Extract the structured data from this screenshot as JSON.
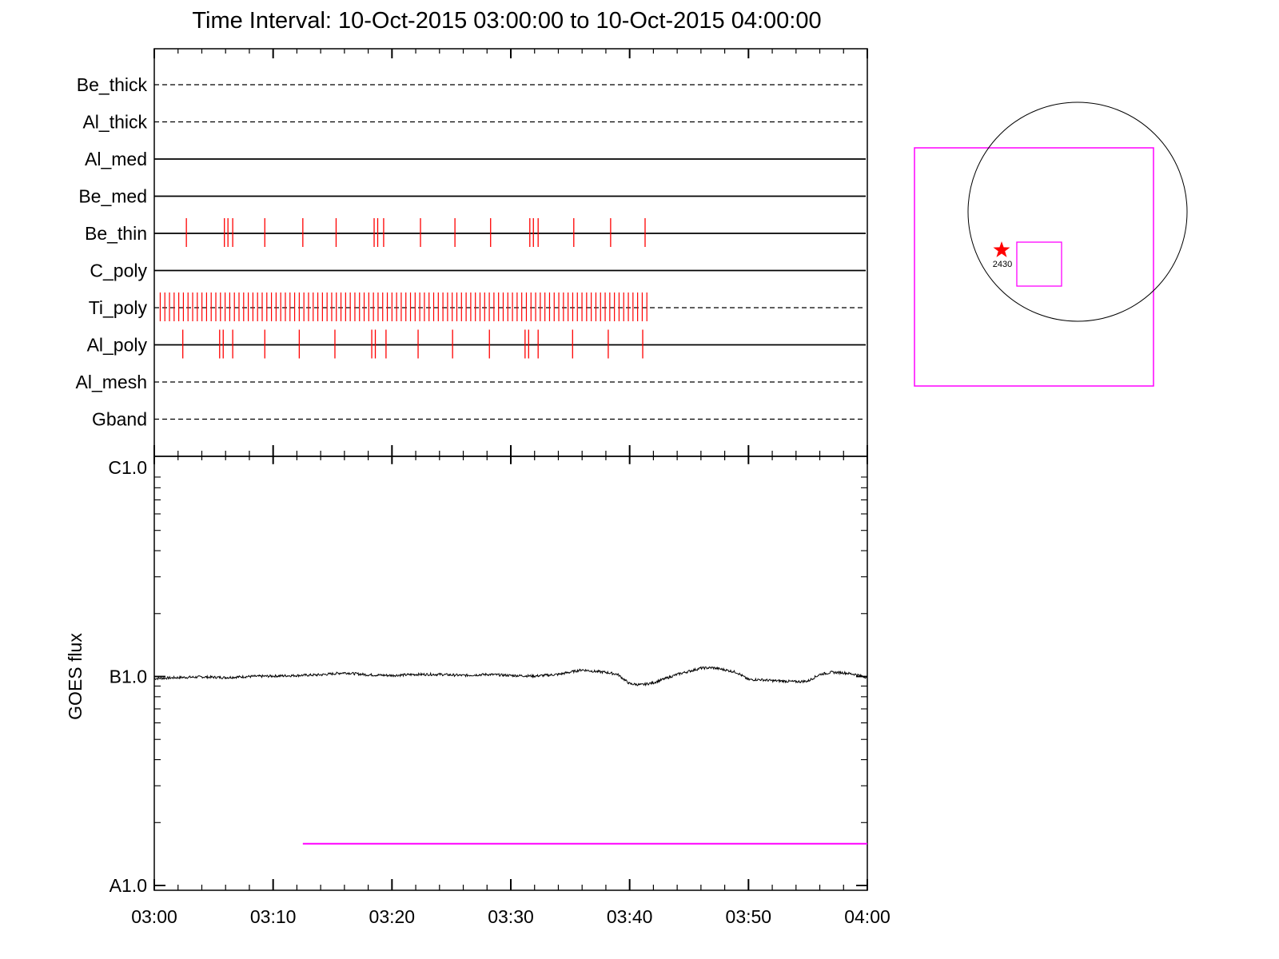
{
  "title": "Time Interval: 10-Oct-2015 03:00:00 to 10-Oct-2015 04:00:00",
  "colors": {
    "axis": "#000000",
    "marks": "#ff0000",
    "magenta": "#ff00ff",
    "curve": "#000000"
  },
  "chart_data": [
    {
      "type": "timeline",
      "x_range_minutes": [
        0,
        60
      ],
      "x_start": "03:00",
      "x_end": "04:00",
      "tick_labels": [
        "03:00",
        "03:10",
        "03:20",
        "03:30",
        "03:40",
        "03:50",
        "04:00"
      ],
      "channels": [
        {
          "name": "Be_thick",
          "line": "dashed",
          "events_min": []
        },
        {
          "name": "Al_thick",
          "line": "dashed",
          "events_min": []
        },
        {
          "name": "Al_med",
          "line": "solid",
          "events_min": []
        },
        {
          "name": "Be_med",
          "line": "solid",
          "events_min": []
        },
        {
          "name": "Be_thin",
          "line": "solid",
          "events_min": [
            2.7,
            5.9,
            6.2,
            6.6,
            9.3,
            12.5,
            15.3,
            18.5,
            18.8,
            19.3,
            22.4,
            25.3,
            28.3,
            31.6,
            31.9,
            32.3,
            35.3,
            38.4,
            41.3
          ]
        },
        {
          "name": "C_poly",
          "line": "solid",
          "events_min": []
        },
        {
          "name": "Ti_poly",
          "line": "dashed",
          "events_min": [],
          "dense_range_min": [
            0.5,
            41.7
          ],
          "dense_spacing_min": 0.39
        },
        {
          "name": "Al_poly",
          "line": "solid",
          "events_min": [
            2.4,
            5.5,
            5.8,
            6.6,
            9.3,
            12.2,
            15.2,
            18.3,
            18.6,
            19.5,
            22.2,
            25.1,
            28.2,
            31.2,
            31.5,
            32.3,
            35.2,
            38.2,
            41.1
          ]
        },
        {
          "name": "Al_mesh",
          "line": "dashed",
          "events_min": []
        },
        {
          "name": "Gband",
          "line": "dashed",
          "events_min": []
        }
      ]
    },
    {
      "type": "line",
      "ylabel": "GOES flux",
      "y_scale": "log",
      "y_tick_labels": [
        "C1.0",
        "B1.0",
        "A1.0"
      ],
      "ylim_decades": [
        -8,
        -6
      ],
      "x_tick_labels": [
        "03:00",
        "03:10",
        "03:20",
        "03:30",
        "03:40",
        "03:50",
        "04:00"
      ],
      "series": [
        {
          "x_min": [
            0,
            2,
            4,
            6,
            8,
            10,
            12,
            14,
            16,
            18,
            20,
            22,
            24,
            26,
            28,
            30,
            32,
            34,
            36,
            37,
            38,
            39,
            40,
            41,
            42,
            43,
            44,
            45,
            46,
            47,
            48,
            49,
            50,
            51,
            52,
            53,
            54,
            55,
            56,
            57,
            58,
            59,
            60
          ],
          "log10_flux": [
            -7.01,
            -7.005,
            -7.002,
            -7.005,
            -7.0,
            -6.998,
            -6.995,
            -6.992,
            -6.982,
            -6.992,
            -6.995,
            -6.99,
            -6.99,
            -6.995,
            -6.99,
            -6.995,
            -6.998,
            -6.99,
            -6.968,
            -6.975,
            -6.98,
            -6.99,
            -7.035,
            -7.04,
            -7.03,
            -7.01,
            -6.99,
            -6.975,
            -6.96,
            -6.958,
            -6.968,
            -6.98,
            -7.015,
            -7.015,
            -7.02,
            -7.022,
            -7.025,
            -7.022,
            -6.99,
            -6.98,
            -6.982,
            -6.99,
            -7.005
          ]
        }
      ],
      "reference_line": {
        "x_start_min": 12.5,
        "x_end_min": 60,
        "log10_flux": -7.8
      }
    },
    {
      "type": "map",
      "annotation": "2430",
      "marker": "star"
    }
  ]
}
